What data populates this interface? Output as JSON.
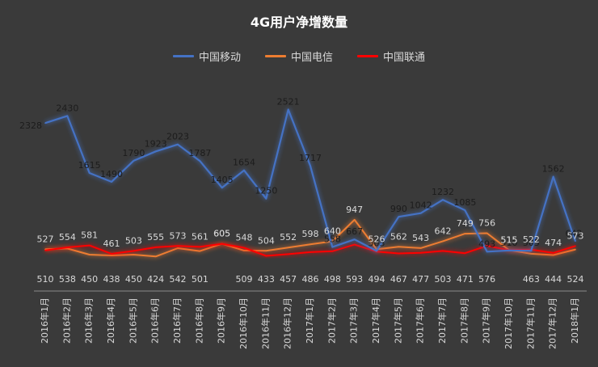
{
  "chart_data": {
    "type": "line",
    "title": "4G用户净增数量",
    "categories": [
      "2016年1月",
      "2016年2月",
      "2016年3月",
      "2016年4月",
      "2016年5月",
      "2016年6月",
      "2016年7月",
      "2016年8月",
      "2016年9月",
      "2016年10月",
      "2016年11月",
      "2016年12月",
      "2017年1月",
      "2017年2月",
      "2017年3月",
      "2017年4月",
      "2017年5月",
      "2017年6月",
      "2017年7月",
      "2017年8月",
      "2017年9月",
      "2017年10月",
      "2017年11月",
      "2017年12月",
      "2018年1月"
    ],
    "series": [
      {
        "name": "中国移动",
        "color": "#4472c4",
        "values": [
          2328,
          2430,
          1615,
          1490,
          1790,
          1923,
          2023,
          1787,
          1405,
          1654,
          1250,
          2521,
          1717,
          558,
          667,
          503,
          990,
          1042,
          1232,
          1085,
          493,
          510,
          505,
          1562,
          642
        ]
      },
      {
        "name": "中国电信",
        "color": "#ed7d31",
        "values": [
          527,
          538,
          450,
          438,
          450,
          424,
          542,
          501,
          605,
          509,
          504,
          552,
          598,
          640,
          947,
          526,
          562,
          543,
          642,
          749,
          756,
          515,
          463,
          444,
          524
        ]
      },
      {
        "name": "中国联通",
        "color": "#ff0000",
        "values": [
          510,
          554,
          581,
          461,
          503,
          555,
          573,
          561,
          605,
          548,
          433,
          457,
          486,
          498,
          593,
          494,
          467,
          477,
          503,
          471,
          576,
          515,
          522,
          474,
          573
        ]
      }
    ],
    "ylim": [
      0,
      2700
    ],
    "grid": false,
    "legend_position": "top"
  }
}
